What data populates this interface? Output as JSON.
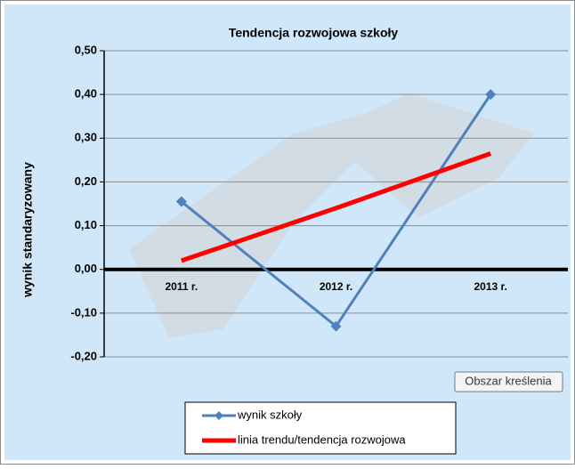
{
  "chart_data": {
    "type": "line",
    "title": "Tendencja rozwojowa szkoły",
    "y_label": "wynik standaryzowany",
    "categories": [
      "2011 r.",
      "2012 r.",
      "2013 r."
    ],
    "series": [
      {
        "name": "wynik szkoły",
        "color": "#4f81bd",
        "values": [
          0.155,
          -0.13,
          0.4
        ],
        "marker": "diamond",
        "line_width": 3
      },
      {
        "name": "linia trendu/tendencja rozwojowa",
        "color": "#ff0000",
        "values": [
          0.02,
          0.14,
          0.265
        ],
        "marker": "none",
        "line_width": 5
      }
    ],
    "ylim": [
      -0.2,
      0.5
    ],
    "yticks": [
      {
        "value": -0.2,
        "label": "-0,20"
      },
      {
        "value": -0.1,
        "label": "-0,10"
      },
      {
        "value": 0,
        "label": "0,00"
      },
      {
        "value": 0.1,
        "label": "0,10"
      },
      {
        "value": 0.2,
        "label": "0,20"
      },
      {
        "value": 0.3,
        "label": "0,30"
      },
      {
        "value": 0.4,
        "label": "0,40"
      },
      {
        "value": 0.5,
        "label": "0,50"
      }
    ],
    "grid": true,
    "legend": "bottom",
    "annotations": [
      "Obszar kreślenia"
    ]
  }
}
